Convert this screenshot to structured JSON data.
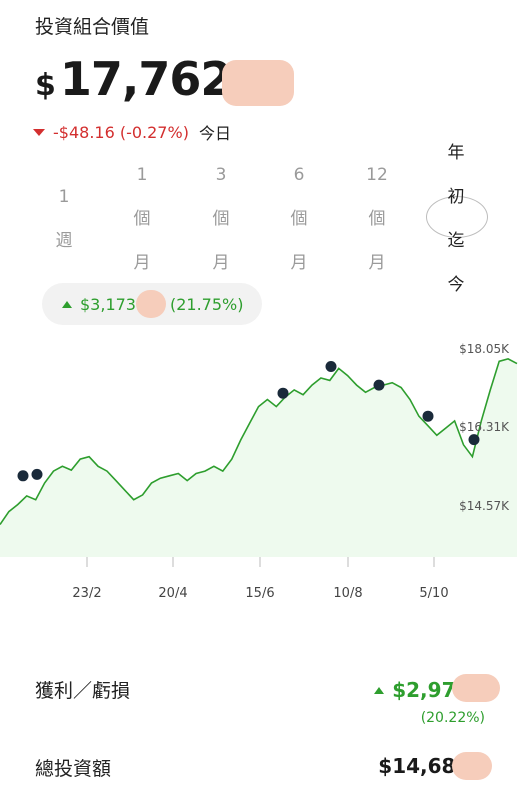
{
  "portfolio": {
    "title": "投資組合價值",
    "currency_symbol": "$",
    "value": "17,762.",
    "day_change": "-$48.16 (-0.27%)",
    "day_label": "今日"
  },
  "periods": [
    {
      "lines": [
        "1",
        "週"
      ],
      "active": false
    },
    {
      "lines": [
        "1",
        "個",
        "月"
      ],
      "active": false
    },
    {
      "lines": [
        "3",
        "個",
        "月"
      ],
      "active": false
    },
    {
      "lines": [
        "6",
        "個",
        "月"
      ],
      "active": false
    },
    {
      "lines": [
        "12",
        "個",
        "月"
      ],
      "active": false
    },
    {
      "lines": [
        "年",
        "初",
        "迄",
        "今"
      ],
      "active": true
    }
  ],
  "period_gain": {
    "amount": "$3,173",
    "percent": "(21.75%)"
  },
  "chart_data": {
    "type": "line",
    "y_ticks": [
      "$18.05K",
      "$16.31K",
      "$14.57K"
    ],
    "x_ticks": [
      "23/2",
      "20/4",
      "15/6",
      "10/8",
      "5/10"
    ],
    "ylim": [
      13900,
      18550
    ],
    "line_color": "#2e9e2e",
    "fill_color": "#eefaee",
    "series": [
      {
        "values": [
          14580,
          14850,
          15000,
          15180,
          15100,
          15450,
          15700,
          15800,
          15720,
          15950,
          16000,
          15800,
          15700,
          15500,
          15300,
          15100,
          15200,
          15450,
          15550,
          15600,
          15650,
          15500,
          15650,
          15700,
          15800,
          15700,
          15950,
          16350,
          16700,
          17050,
          17200,
          17050,
          17250,
          17400,
          17300,
          17500,
          17650,
          17600,
          17850,
          17700,
          17500,
          17350,
          17450,
          17500,
          17550,
          17450,
          17200,
          16850,
          16650,
          16450,
          16600,
          16750,
          16250,
          16000,
          16750,
          17400,
          18000,
          18050,
          17950
        ]
      }
    ],
    "markers": [
      15600,
      15630,
      17330,
      17890,
      17500,
      16850,
      16360
    ]
  },
  "summary": {
    "profit_label": "獲利／虧損",
    "profit_value": "$2,970.",
    "profit_percent": "(20.22%)",
    "invested_label": "總投資額",
    "invested_value": "$14,689."
  }
}
